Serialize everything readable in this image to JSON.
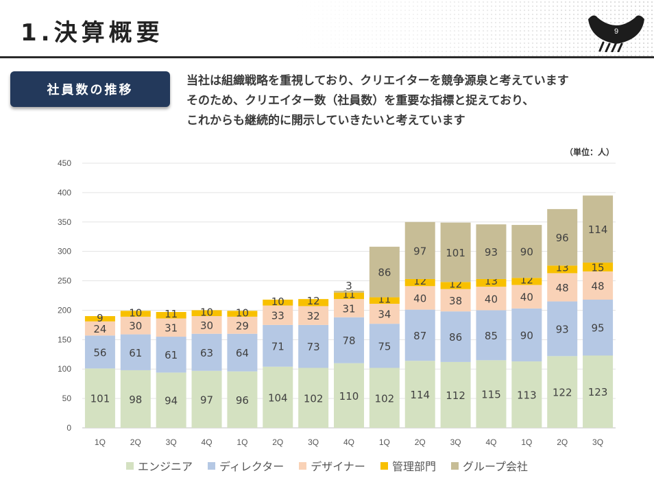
{
  "header": {
    "title": "1.決算概要",
    "page_number": "9"
  },
  "section": {
    "badge": "社員数の推移",
    "description": [
      "当社は組織戦略を重視しており、クリエイターを競争源泉と考えています",
      "そのため、クリエイター数（社員数）を重要な指標と捉えており、",
      "これからも継続的に開示していきたいと考えています"
    ]
  },
  "chart_data": {
    "type": "bar",
    "stacked": true,
    "unit_label": "（単位：人）",
    "categories": [
      "1Q",
      "2Q",
      "3Q",
      "4Q",
      "1Q",
      "2Q",
      "3Q",
      "4Q",
      "1Q",
      "2Q",
      "3Q",
      "4Q",
      "1Q",
      "2Q",
      "3Q"
    ],
    "ylim": [
      0,
      450
    ],
    "yticks": [
      0,
      50,
      100,
      150,
      200,
      250,
      300,
      350,
      400,
      450
    ],
    "grid": true,
    "legend_position": "bottom",
    "series": [
      {
        "name": "エンジニア",
        "color": "#d4e1c1",
        "values": [
          101,
          98,
          94,
          97,
          96,
          104,
          102,
          110,
          102,
          114,
          112,
          115,
          113,
          122,
          123
        ]
      },
      {
        "name": "ディレクター",
        "color": "#b5c8e4",
        "values": [
          56,
          61,
          61,
          63,
          64,
          71,
          73,
          78,
          75,
          87,
          86,
          85,
          90,
          93,
          95
        ]
      },
      {
        "name": "デザイナー",
        "color": "#f9d2b7",
        "values": [
          24,
          30,
          31,
          30,
          29,
          33,
          32,
          31,
          34,
          40,
          38,
          40,
          40,
          48,
          48
        ]
      },
      {
        "name": "管理部門",
        "color": "#f8c000",
        "values": [
          9,
          10,
          11,
          10,
          10,
          10,
          12,
          11,
          11,
          12,
          12,
          13,
          12,
          13,
          15
        ]
      },
      {
        "name": "グループ会社",
        "color": "#c7bd96",
        "values": [
          0,
          0,
          0,
          0,
          0,
          0,
          0,
          3,
          86,
          97,
          101,
          93,
          90,
          96,
          114
        ]
      }
    ]
  }
}
